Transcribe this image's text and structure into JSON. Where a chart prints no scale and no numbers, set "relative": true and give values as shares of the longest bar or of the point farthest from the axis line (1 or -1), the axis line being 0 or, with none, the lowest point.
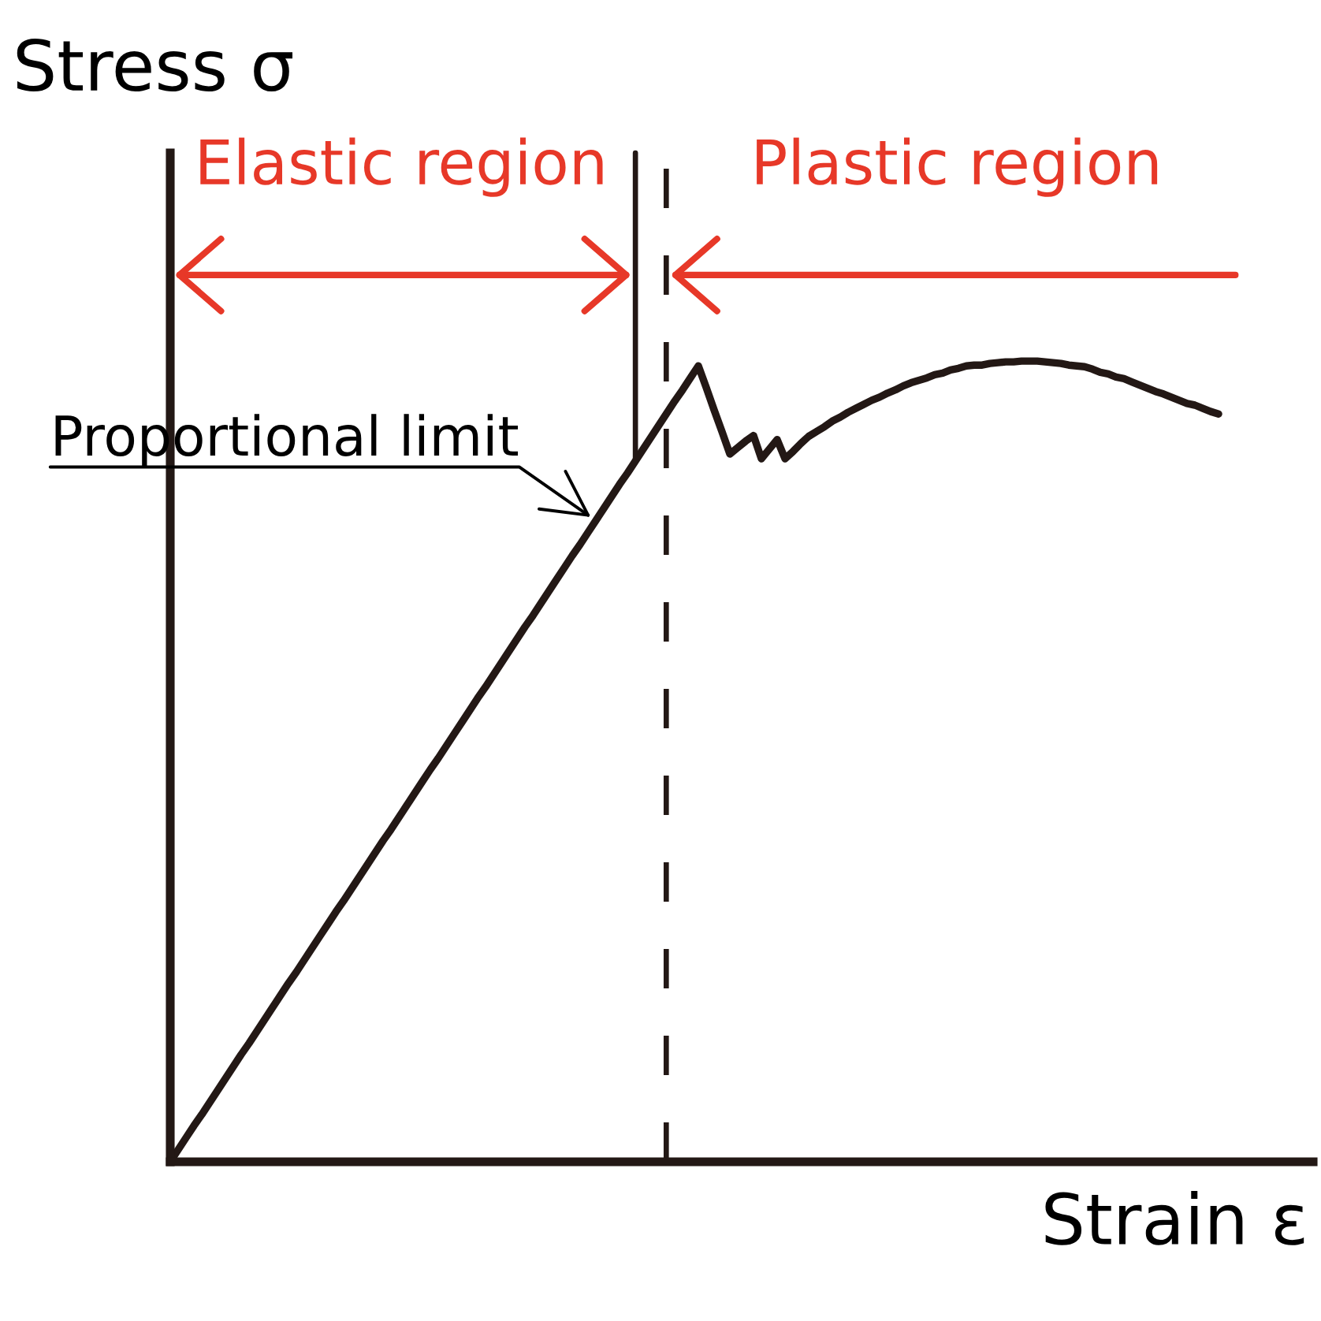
{
  "chart_data": {
    "type": "line",
    "relative": true,
    "xlabel": "Strain ε",
    "ylabel": "Stress σ",
    "categories": [
      null,
      null,
      null,
      null,
      null,
      null,
      null,
      null,
      null,
      null,
      null,
      null,
      null,
      null,
      null,
      null,
      null,
      null,
      null,
      null,
      null,
      null,
      null,
      null,
      null,
      null,
      null,
      null,
      null,
      null,
      null,
      null,
      null,
      null,
      null,
      null,
      null,
      null,
      null,
      null,
      null,
      null,
      null,
      null,
      null,
      null,
      null,
      null,
      null,
      null,
      null,
      null,
      null,
      null,
      null,
      null,
      null,
      null,
      null,
      null,
      null,
      null,
      null,
      null,
      null,
      null,
      null,
      null,
      null,
      null,
      null,
      null,
      null,
      null,
      null,
      null,
      null,
      null,
      null,
      null,
      null,
      null,
      null,
      null,
      null,
      null,
      null,
      null,
      null,
      null,
      null,
      null,
      null,
      null,
      null,
      null,
      null,
      null,
      null,
      null,
      null,
      null,
      null,
      null,
      null,
      null,
      null,
      null,
      null,
      null,
      null,
      null,
      null,
      null,
      null,
      null,
      null,
      null,
      null,
      null,
      null,
      null,
      null,
      null,
      null,
      null,
      null,
      null,
      null,
      null,
      null,
      null,
      null,
      null,
      null,
      null,
      null,
      null,
      null,
      null,
      null,
      null,
      null,
      null,
      null,
      null
    ],
    "series": [
      {
        "color": "#231815",
        "values": [
          0,
          0.015,
          0.03,
          0.045,
          0.059,
          0.074,
          0.089,
          0.104,
          0.119,
          0.134,
          0.148,
          0.163,
          0.178,
          0.193,
          0.208,
          0.223,
          0.237,
          0.252,
          0.267,
          0.282,
          0.297,
          0.312,
          0.326,
          0.341,
          0.356,
          0.371,
          0.386,
          0.401,
          0.415,
          0.43,
          0.445,
          0.46,
          0.475,
          0.49,
          0.504,
          0.519,
          0.534,
          0.549,
          0.564,
          0.579,
          0.593,
          0.608,
          0.623,
          0.638,
          0.653,
          0.668,
          0.682,
          0.697,
          0.712,
          0.727,
          0.742,
          0.757,
          0.771,
          0.786,
          0.801,
          0.816,
          0.831,
          0.846,
          0.86,
          0.875,
          0.89,
          0.905,
          0.92,
          0.935,
          0.95,
          0.964,
          0.979,
          0.994,
          0.967,
          0.939,
          0.912,
          0.884,
          0.892,
          0.9,
          0.907,
          0.878,
          0.89,
          0.902,
          0.878,
          0.887,
          0.897,
          0.906,
          0.912,
          0.918,
          0.925,
          0.93,
          0.936,
          0.941,
          0.946,
          0.951,
          0.955,
          0.96,
          0.964,
          0.969,
          0.973,
          0.976,
          0.979,
          0.983,
          0.985,
          0.989,
          0.991,
          0.994,
          0.995,
          0.995,
          0.997,
          0.998,
          0.999,
          0.999,
          1.0,
          1.0,
          1.0,
          0.999,
          0.998,
          0.997,
          0.995,
          0.994,
          0.993,
          0.99,
          0.986,
          0.984,
          0.98,
          0.978,
          0.974,
          0.97,
          0.966,
          0.962,
          0.959,
          0.955,
          0.951,
          0.947,
          0.945,
          0.941,
          0.937,
          0.934,
          null,
          null,
          null,
          null,
          null,
          null,
          null,
          null,
          null,
          null,
          null,
          null
        ]
      }
    ],
    "annotations": [
      "Elastic region",
      "Plastic region",
      "Proportional limit"
    ]
  }
}
